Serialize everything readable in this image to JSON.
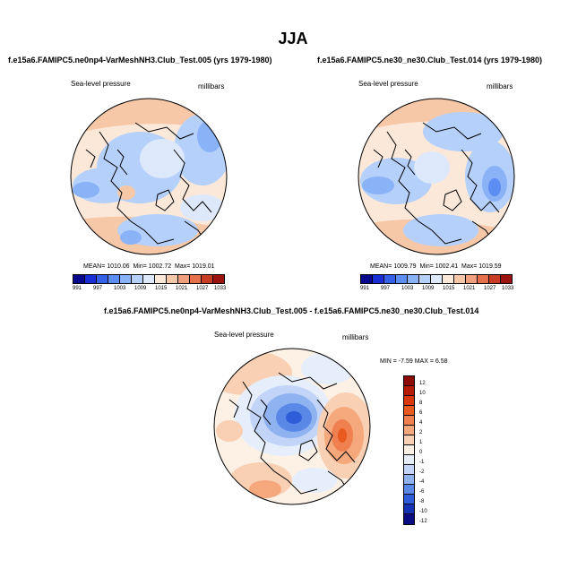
{
  "figure": {
    "title": "JJA",
    "panels": [
      {
        "subtitle": "f.e15a6.FAMIPC5.ne0np4-VarMeshNH3.Club_Test.005 (yrs 1979-1980)",
        "variable": "Sea-level pressure",
        "units": "millibars",
        "mean_label": "MEAN=",
        "mean": "1010.06",
        "min_label": "Min=",
        "min": "1002.72",
        "max_label": "Max=",
        "max": "1019.01",
        "colorbar_ticks": [
          "991",
          "997",
          "1003",
          "1009",
          "1015",
          "1021",
          "1027",
          "1033"
        ]
      },
      {
        "subtitle": "f.e15a6.FAMIPC5.ne30_ne30.Club_Test.014 (yrs 1979-1980)",
        "variable": "Sea-level pressure",
        "units": "millibars",
        "mean_label": "MEAN=",
        "mean": "1009.79",
        "min_label": "Min=",
        "min": "1002.41",
        "max_label": "Max=",
        "max": "1019.59",
        "colorbar_ticks": [
          "991",
          "997",
          "1003",
          "1009",
          "1015",
          "1021",
          "1027",
          "1033"
        ]
      }
    ],
    "difference": {
      "subtitle": "f.e15a6.FAMIPC5.ne0np4-VarMeshNH3.Club_Test.005 - f.e15a6.FAMIPC5.ne30_ne30.Club_Test.014",
      "variable": "Sea-level pressure",
      "units": "millibars",
      "minmax_text": "MIN = -7.59  MAX =  6.58",
      "colorbar_ticks": [
        "12",
        "10",
        "8",
        "6",
        "4",
        "2",
        "1",
        "0",
        "-1",
        "-2",
        "-4",
        "-6",
        "-8",
        "-10",
        "-12"
      ]
    },
    "colors": {
      "abs_scale": [
        "#08088c",
        "#1a2ed6",
        "#3561e8",
        "#5b8df2",
        "#8ab2f7",
        "#b5d0fa",
        "#dde8fb",
        "#fbe8d8",
        "#f6c8a8",
        "#f0a07c",
        "#e4704c",
        "#c83c24",
        "#9c1410"
      ],
      "diff_scale": [
        "#8c0b05",
        "#b41c08",
        "#d8380c",
        "#e85a20",
        "#f08050",
        "#f5a87c",
        "#f9d0b4",
        "#fdf0e4",
        "#e6eefb",
        "#c2d4f7",
        "#8fb2f0",
        "#5a88e6",
        "#2f5cd8",
        "#1432b4",
        "#080c80"
      ],
      "land_outline": "#000000",
      "map_border": "#000000"
    }
  }
}
